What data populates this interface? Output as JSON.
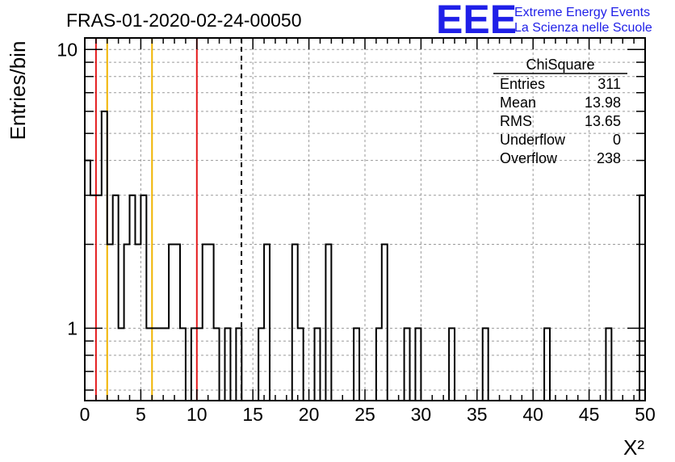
{
  "chart_data": {
    "type": "bar",
    "title": "FRAS-01-2020-02-24-00050",
    "xlabel": "X²",
    "ylabel": "Entries/bin",
    "xlim": [
      0,
      50
    ],
    "ylim": [
      0.55,
      11
    ],
    "yscale": "log",
    "grid": true,
    "x_ticks": [
      "0",
      "5",
      "10",
      "15",
      "20",
      "25",
      "30",
      "35",
      "40",
      "45",
      "50"
    ],
    "y_ticks": [
      "1",
      "10"
    ],
    "bin_width": 0.5,
    "bins": [
      {
        "x": 0.0,
        "y": 4
      },
      {
        "x": 0.5,
        "y": 3
      },
      {
        "x": 1.0,
        "y": 3
      },
      {
        "x": 1.5,
        "y": 6
      },
      {
        "x": 2.0,
        "y": 2
      },
      {
        "x": 2.5,
        "y": 3
      },
      {
        "x": 3.0,
        "y": 1
      },
      {
        "x": 3.5,
        "y": 2
      },
      {
        "x": 4.0,
        "y": 3
      },
      {
        "x": 4.5,
        "y": 2
      },
      {
        "x": 5.0,
        "y": 3
      },
      {
        "x": 5.5,
        "y": 1
      },
      {
        "x": 6.0,
        "y": 1
      },
      {
        "x": 6.5,
        "y": 1
      },
      {
        "x": 7.0,
        "y": 1
      },
      {
        "x": 7.5,
        "y": 2
      },
      {
        "x": 8.0,
        "y": 2
      },
      {
        "x": 8.5,
        "y": 1
      },
      {
        "x": 9.0,
        "y": 0
      },
      {
        "x": 9.5,
        "y": 1
      },
      {
        "x": 10.0,
        "y": 1
      },
      {
        "x": 10.5,
        "y": 2
      },
      {
        "x": 11.0,
        "y": 2
      },
      {
        "x": 11.5,
        "y": 1
      },
      {
        "x": 12.0,
        "y": 0
      },
      {
        "x": 12.5,
        "y": 1
      },
      {
        "x": 13.0,
        "y": 0
      },
      {
        "x": 13.5,
        "y": 1
      },
      {
        "x": 14.0,
        "y": 0
      },
      {
        "x": 14.5,
        "y": 0
      },
      {
        "x": 15.0,
        "y": 0
      },
      {
        "x": 15.5,
        "y": 1
      },
      {
        "x": 16.0,
        "y": 2
      },
      {
        "x": 16.5,
        "y": 0
      },
      {
        "x": 17.0,
        "y": 0
      },
      {
        "x": 17.5,
        "y": 0
      },
      {
        "x": 18.0,
        "y": 0
      },
      {
        "x": 18.5,
        "y": 2
      },
      {
        "x": 19.0,
        "y": 1
      },
      {
        "x": 19.5,
        "y": 0
      },
      {
        "x": 20.0,
        "y": 0
      },
      {
        "x": 20.5,
        "y": 1
      },
      {
        "x": 21.0,
        "y": 0
      },
      {
        "x": 21.5,
        "y": 2
      },
      {
        "x": 22.0,
        "y": 0
      },
      {
        "x": 22.5,
        "y": 0
      },
      {
        "x": 23.0,
        "y": 0
      },
      {
        "x": 23.5,
        "y": 0
      },
      {
        "x": 24.0,
        "y": 1
      },
      {
        "x": 24.5,
        "y": 0
      },
      {
        "x": 25.0,
        "y": 0
      },
      {
        "x": 25.5,
        "y": 0
      },
      {
        "x": 26.0,
        "y": 1
      },
      {
        "x": 26.5,
        "y": 2
      },
      {
        "x": 27.0,
        "y": 0
      },
      {
        "x": 27.5,
        "y": 0
      },
      {
        "x": 28.0,
        "y": 0
      },
      {
        "x": 28.5,
        "y": 1
      },
      {
        "x": 29.0,
        "y": 0
      },
      {
        "x": 29.5,
        "y": 1
      },
      {
        "x": 30.0,
        "y": 0
      },
      {
        "x": 30.5,
        "y": 0
      },
      {
        "x": 31.0,
        "y": 0
      },
      {
        "x": 31.5,
        "y": 0
      },
      {
        "x": 32.0,
        "y": 0
      },
      {
        "x": 32.5,
        "y": 1
      },
      {
        "x": 33.0,
        "y": 0
      },
      {
        "x": 33.5,
        "y": 0
      },
      {
        "x": 34.0,
        "y": 0
      },
      {
        "x": 34.5,
        "y": 0
      },
      {
        "x": 35.0,
        "y": 0
      },
      {
        "x": 35.5,
        "y": 1
      },
      {
        "x": 36.0,
        "y": 0
      },
      {
        "x": 36.5,
        "y": 0
      },
      {
        "x": 37.0,
        "y": 0
      },
      {
        "x": 37.5,
        "y": 0
      },
      {
        "x": 38.0,
        "y": 0
      },
      {
        "x": 38.5,
        "y": 0
      },
      {
        "x": 39.0,
        "y": 0
      },
      {
        "x": 39.5,
        "y": 0
      },
      {
        "x": 40.0,
        "y": 0
      },
      {
        "x": 40.5,
        "y": 0
      },
      {
        "x": 41.0,
        "y": 1
      },
      {
        "x": 41.5,
        "y": 0
      },
      {
        "x": 42.0,
        "y": 0
      },
      {
        "x": 42.5,
        "y": 0
      },
      {
        "x": 43.0,
        "y": 0
      },
      {
        "x": 43.5,
        "y": 0
      },
      {
        "x": 44.0,
        "y": 0
      },
      {
        "x": 44.5,
        "y": 0
      },
      {
        "x": 45.0,
        "y": 0
      },
      {
        "x": 45.5,
        "y": 0
      },
      {
        "x": 46.0,
        "y": 0
      },
      {
        "x": 46.5,
        "y": 1
      },
      {
        "x": 47.0,
        "y": 0
      },
      {
        "x": 47.5,
        "y": 0
      },
      {
        "x": 48.0,
        "y": 0
      },
      {
        "x": 48.5,
        "y": 0
      },
      {
        "x": 49.0,
        "y": 0
      },
      {
        "x": 49.5,
        "y": 3
      }
    ],
    "reference_lines": [
      {
        "x": 1,
        "color": "#e41a1c",
        "style": "solid"
      },
      {
        "x": 2,
        "color": "#f0b400",
        "style": "solid"
      },
      {
        "x": 6,
        "color": "#f0b400",
        "style": "solid"
      },
      {
        "x": 10,
        "color": "#e41a1c",
        "style": "solid"
      },
      {
        "x": 13.98,
        "color": "#000000",
        "style": "dashed"
      }
    ],
    "stats_box": {
      "title": "ChiSquare",
      "rows": [
        {
          "label": "Entries",
          "value": "311"
        },
        {
          "label": "Mean",
          "value": "13.98"
        },
        {
          "label": "RMS",
          "value": "13.65"
        },
        {
          "label": "Underflow",
          "value": "0"
        },
        {
          "label": "Overflow",
          "value": "238"
        }
      ]
    }
  },
  "logo": {
    "mark": "EEE",
    "line1": "Extreme Energy Events",
    "line2": "La Scienza nelle Scuole",
    "color": "#1f1fe8"
  }
}
